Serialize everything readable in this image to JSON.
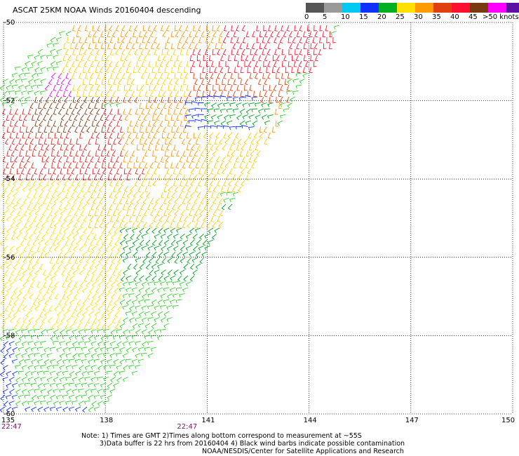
{
  "title": "ASCAT 25KM NOAA Winds 20160404 descending",
  "legend": {
    "unit_label": ">50 knots",
    "bins": [
      {
        "label": "0",
        "color": "#555555"
      },
      {
        "label": "5",
        "color": "#9a9a9a"
      },
      {
        "label": "10",
        "color": "#00c8f0"
      },
      {
        "label": "15",
        "color": "#1030ff"
      },
      {
        "label": "20",
        "color": "#00b020"
      },
      {
        "label": "25",
        "color": "#ffe000"
      },
      {
        "label": "30",
        "color": "#ff9a00"
      },
      {
        "label": "35",
        "color": "#e04010"
      },
      {
        "label": "40",
        "color": "#ff1030"
      },
      {
        "label": "45",
        "color": "#7a3a10"
      },
      {
        "label": "",
        "color": "#ff00ff"
      },
      {
        "label": "",
        "color": "#5a10a0"
      }
    ]
  },
  "map": {
    "lat_labels": [
      "-50",
      "-52",
      "-54",
      "-56",
      "-58",
      "-60"
    ],
    "lon_labels": [
      "135",
      "138",
      "141",
      "144",
      "147",
      "150"
    ],
    "lon_range": [
      135,
      150
    ],
    "lat_range": [
      -60,
      -50
    ],
    "time_labels": [
      {
        "text": "22:47",
        "lon": 135
      },
      {
        "text": "22:47",
        "lon": 140.4
      }
    ],
    "regions": [
      {
        "name": "southwest",
        "color": "#1030ff",
        "lat": [
          -60,
          -58
        ],
        "lon": [
          135,
          137.5
        ],
        "dir": 210
      },
      {
        "name": "south-central",
        "color": "#38d030",
        "lat": [
          -59.8,
          -56.2
        ],
        "lon": [
          135.5,
          140.8
        ],
        "dir": 200
      },
      {
        "name": "central",
        "color": "#00a020",
        "lat": [
          -56.5,
          -54.6
        ],
        "lon": [
          137.5,
          141.8
        ],
        "dir": 215
      },
      {
        "name": "west",
        "color": "#ffe000",
        "lat": [
          -57.8,
          -54
        ],
        "lon": [
          135,
          138.5
        ],
        "dir": 230
      },
      {
        "name": "mid",
        "color": "#ffcc00",
        "lat": [
          -55.2,
          -53.6
        ],
        "lon": [
          137.5,
          141.5
        ],
        "dir": 240
      },
      {
        "name": "northwest",
        "color": "#e82020",
        "lat": [
          -54,
          -52.2
        ],
        "lon": [
          135,
          139.2
        ],
        "dir": 250
      },
      {
        "name": "north",
        "color": "#ff9a00",
        "lat": [
          -53.6,
          -51.6
        ],
        "lon": [
          138.5,
          143.2
        ],
        "dir": 250
      },
      {
        "name": "north-band",
        "color": "#e04010",
        "lat": [
          -52,
          -50.6
        ],
        "lon": [
          137.8,
          143.5
        ],
        "dir": 255
      },
      {
        "name": "far-north",
        "color": "#ffd000",
        "lat": [
          -51.8,
          -50.3
        ],
        "lon": [
          136.8,
          140.5
        ],
        "dir": 250
      },
      {
        "name": "northeast",
        "color": "#ff1030",
        "lat": [
          -51.2,
          -50
        ],
        "lon": [
          140.5,
          144.8
        ],
        "dir": 255
      },
      {
        "name": "top",
        "color": "#ff9a00",
        "lat": [
          -50.6,
          -50
        ],
        "lon": [
          137,
          141.5
        ],
        "dir": 250
      },
      {
        "name": "brown",
        "color": "#7a3a10",
        "lat": [
          -52.8,
          -51.8
        ],
        "lon": [
          135.8,
          138
        ],
        "dir": 245
      },
      {
        "name": "magenta",
        "color": "#e010e0",
        "lat": [
          -51.8,
          -51.2
        ],
        "lon": [
          136.3,
          137
        ],
        "dir": 240
      },
      {
        "name": "mixed-band",
        "color": "#1030ff",
        "lat": [
          -52.8,
          -51.8
        ],
        "lon": [
          140.5,
          142.5
        ],
        "dir": 180
      },
      {
        "name": "green-band",
        "color": "#00a020",
        "lat": [
          -52.6,
          -52
        ],
        "lon": [
          141,
          143
        ],
        "dir": 200
      },
      {
        "name": "east-yellow",
        "color": "#ffcc00",
        "lat": [
          -54.2,
          -52.8
        ],
        "lon": [
          140.8,
          142.8
        ],
        "dir": 240
      }
    ]
  },
  "notes": [
    "Note: 1) Times are GMT 2)Times along bottom correspond to measurement at ~55S",
    "3)Data buffer is 22 hrs from 20160404 4) Black wind barbs indicate possible contamination",
    "NOAA/NESDIS/Center for Satellite Applications and Research"
  ]
}
